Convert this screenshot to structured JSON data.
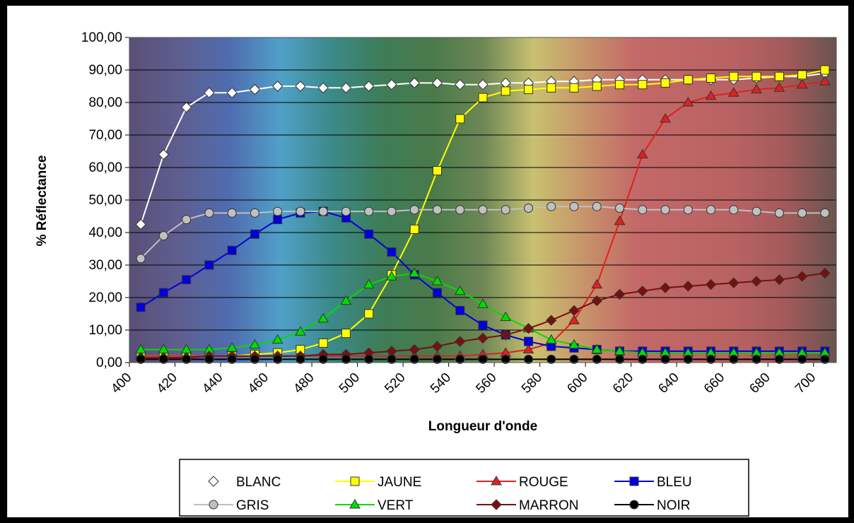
{
  "chart_data": {
    "type": "line",
    "title": "",
    "xlabel": "Longueur d'onde",
    "ylabel": "% Réflectance",
    "x_ticks": [
      "400",
      "420",
      "440",
      "460",
      "480",
      "500",
      "520",
      "540",
      "560",
      "580",
      "600",
      "620",
      "640",
      "660",
      "680",
      "700"
    ],
    "y_ticks": [
      "0,00",
      "10,00",
      "20,00",
      "30,00",
      "40,00",
      "50,00",
      "60,00",
      "70,00",
      "80,00",
      "90,00",
      "100,00"
    ],
    "xlim": [
      400,
      710
    ],
    "ylim": [
      0,
      100
    ],
    "grid": true,
    "legend_position": "bottom",
    "x": [
      405,
      415,
      425,
      435,
      445,
      455,
      465,
      475,
      485,
      495,
      505,
      515,
      525,
      535,
      545,
      555,
      565,
      575,
      585,
      595,
      605,
      615,
      625,
      635,
      645,
      655,
      665,
      675,
      685,
      695,
      705
    ],
    "series": [
      {
        "name": "BLANC",
        "color": "#ffffff",
        "marker": "diamond",
        "values": [
          42.5,
          64,
          78.5,
          83,
          83,
          84,
          85,
          85,
          84.5,
          84.5,
          85,
          85.5,
          86,
          86,
          85.5,
          85.5,
          86,
          86,
          86.5,
          86.5,
          87,
          87,
          87,
          87,
          87,
          87,
          87,
          87.5,
          88,
          88,
          89
        ]
      },
      {
        "name": "JAUNE",
        "color": "#ffff00",
        "marker": "square",
        "values": [
          2,
          2,
          2,
          2,
          2,
          2.5,
          3,
          4,
          6,
          9,
          15,
          27,
          41,
          59,
          75,
          81.5,
          83.5,
          84,
          84.5,
          84.5,
          85,
          85.5,
          85.5,
          86,
          87,
          87.5,
          88,
          88,
          88,
          88.5,
          90
        ]
      },
      {
        "name": "ROUGE",
        "color": "#e02020",
        "marker": "triangle",
        "values": [
          2,
          2,
          2,
          2,
          2,
          2,
          2,
          2,
          2,
          2,
          2,
          2,
          2,
          2,
          2,
          2.5,
          3,
          4,
          6,
          13,
          24,
          43.5,
          64,
          75,
          80,
          82,
          83,
          84,
          84.5,
          85.5,
          86.5
        ]
      },
      {
        "name": "BLEU",
        "color": "#0000dd",
        "marker": "square",
        "values": [
          17,
          21.5,
          25.5,
          30,
          34.5,
          39.5,
          44,
          46,
          46.5,
          44.5,
          39.5,
          34,
          27,
          21.5,
          16,
          11.5,
          8.5,
          6.5,
          5,
          4.5,
          4,
          3.5,
          3.5,
          3.5,
          3.5,
          3.5,
          3.5,
          3.5,
          3.5,
          3.5,
          3.5
        ]
      },
      {
        "name": "GRIS",
        "color": "#c0c0c0",
        "marker": "circle",
        "values": [
          32,
          39,
          44,
          46,
          46,
          46,
          46.5,
          46.5,
          46.5,
          46.5,
          46.5,
          46.5,
          47,
          47,
          47,
          47,
          47,
          47.5,
          48,
          48,
          48,
          47.5,
          47,
          47,
          47,
          47,
          47,
          46.5,
          46,
          46,
          46
        ]
      },
      {
        "name": "VERT",
        "color": "#00dd00",
        "marker": "triangle",
        "values": [
          4,
          4,
          4,
          4,
          4.5,
          5.5,
          7,
          9.5,
          13.5,
          19,
          24,
          26.5,
          27.5,
          25,
          22,
          18,
          14,
          10.5,
          7,
          5.5,
          4,
          3.5,
          3,
          3,
          3,
          3,
          3,
          3,
          3,
          3,
          3
        ]
      },
      {
        "name": "MARRON",
        "color": "#7a0f0f",
        "marker": "diamond",
        "values": [
          1.5,
          1.5,
          1.5,
          2,
          2,
          2,
          2,
          2,
          2.5,
          2.5,
          3,
          3.5,
          4,
          5,
          6.5,
          7.5,
          8.5,
          10.5,
          13,
          16,
          19,
          21,
          22,
          23,
          23.5,
          24,
          24.5,
          25,
          25.5,
          26.5,
          27.5
        ]
      },
      {
        "name": "NOIR",
        "color": "#000000",
        "marker": "circle",
        "values": [
          1,
          1,
          1,
          1,
          1,
          1,
          1,
          1,
          1,
          1,
          1,
          1,
          1,
          1,
          1,
          1,
          1,
          1,
          1,
          1,
          1,
          1,
          1,
          1,
          1,
          1,
          1,
          1,
          1,
          1,
          1
        ]
      }
    ],
    "spectrum_colors": [
      "#5a5078",
      "#5e5e90",
      "#4f6db0",
      "#50a0c8",
      "#3b8a8a",
      "#3d7d58",
      "#4a7a4a",
      "#6d8755",
      "#c9c171",
      "#c7946a",
      "#c36a68",
      "#be6565",
      "#b86262",
      "#a35a5a",
      "#6a5450"
    ]
  }
}
